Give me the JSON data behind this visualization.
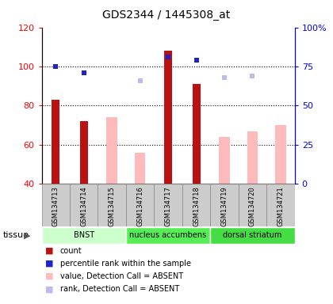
{
  "title": "GDS2344 / 1445308_at",
  "samples": [
    "GSM134713",
    "GSM134714",
    "GSM134715",
    "GSM134716",
    "GSM134717",
    "GSM134718",
    "GSM134719",
    "GSM134720",
    "GSM134721"
  ],
  "ylim_left": [
    40,
    120
  ],
  "ylim_right": [
    0,
    100
  ],
  "y_ticks_left": [
    40,
    60,
    80,
    100,
    120
  ],
  "y_ticks_right": [
    0,
    25,
    50,
    75,
    100
  ],
  "y_tick_labels_right": [
    "0",
    "25",
    "50",
    "75",
    "100%"
  ],
  "count_values": [
    83,
    72,
    null,
    null,
    108,
    91,
    null,
    null,
    null
  ],
  "percentile_values": [
    75,
    71,
    null,
    null,
    81,
    79,
    null,
    null,
    null
  ],
  "absent_value_values": [
    null,
    null,
    74,
    56,
    null,
    null,
    64,
    67,
    70
  ],
  "absent_rank_values": [
    null,
    null,
    null,
    66,
    null,
    null,
    68,
    69,
    null
  ],
  "count_color": "#bb1111",
  "percentile_color": "#2222cc",
  "absent_value_color": "#ffbbbb",
  "absent_rank_color": "#bbbbee",
  "tissue_groups": [
    {
      "label": "BNST",
      "start": 0,
      "end": 3,
      "color": "#ccffcc"
    },
    {
      "label": "nucleus accumbens",
      "start": 3,
      "end": 6,
      "color": "#55ee55"
    },
    {
      "label": "dorsal striatum",
      "start": 6,
      "end": 9,
      "color": "#44dd44"
    }
  ],
  "legend_items": [
    {
      "color": "#bb1111",
      "label": "count"
    },
    {
      "color": "#2222cc",
      "label": "percentile rank within the sample"
    },
    {
      "color": "#ffbbbb",
      "label": "value, Detection Call = ABSENT"
    },
    {
      "color": "#bbbbee",
      "label": "rank, Detection Call = ABSENT"
    }
  ],
  "bg_color": "#ffffff",
  "title_fontsize": 10,
  "sample_bg_color": "#cccccc",
  "sample_border_color": "#888888"
}
